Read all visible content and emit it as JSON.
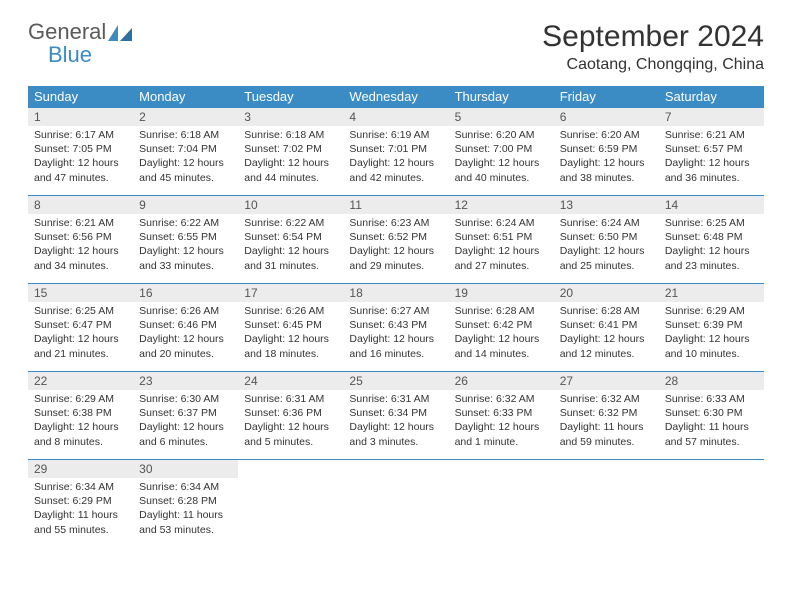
{
  "brand": {
    "general": "General",
    "blue": "Blue"
  },
  "title": "September 2024",
  "location": "Caotang, Chongqing, China",
  "colors": {
    "header_bg": "#3b8bc4",
    "header_text": "#ffffff",
    "daynum_bg": "#ececec",
    "border": "#3b8bc4",
    "logo_gray": "#5a5a5a",
    "logo_blue": "#3b8bc4"
  },
  "day_headers": [
    "Sunday",
    "Monday",
    "Tuesday",
    "Wednesday",
    "Thursday",
    "Friday",
    "Saturday"
  ],
  "days": [
    {
      "n": "1",
      "sr": "Sunrise: 6:17 AM",
      "ss": "Sunset: 7:05 PM",
      "d1": "Daylight: 12 hours",
      "d2": "and 47 minutes."
    },
    {
      "n": "2",
      "sr": "Sunrise: 6:18 AM",
      "ss": "Sunset: 7:04 PM",
      "d1": "Daylight: 12 hours",
      "d2": "and 45 minutes."
    },
    {
      "n": "3",
      "sr": "Sunrise: 6:18 AM",
      "ss": "Sunset: 7:02 PM",
      "d1": "Daylight: 12 hours",
      "d2": "and 44 minutes."
    },
    {
      "n": "4",
      "sr": "Sunrise: 6:19 AM",
      "ss": "Sunset: 7:01 PM",
      "d1": "Daylight: 12 hours",
      "d2": "and 42 minutes."
    },
    {
      "n": "5",
      "sr": "Sunrise: 6:20 AM",
      "ss": "Sunset: 7:00 PM",
      "d1": "Daylight: 12 hours",
      "d2": "and 40 minutes."
    },
    {
      "n": "6",
      "sr": "Sunrise: 6:20 AM",
      "ss": "Sunset: 6:59 PM",
      "d1": "Daylight: 12 hours",
      "d2": "and 38 minutes."
    },
    {
      "n": "7",
      "sr": "Sunrise: 6:21 AM",
      "ss": "Sunset: 6:57 PM",
      "d1": "Daylight: 12 hours",
      "d2": "and 36 minutes."
    },
    {
      "n": "8",
      "sr": "Sunrise: 6:21 AM",
      "ss": "Sunset: 6:56 PM",
      "d1": "Daylight: 12 hours",
      "d2": "and 34 minutes."
    },
    {
      "n": "9",
      "sr": "Sunrise: 6:22 AM",
      "ss": "Sunset: 6:55 PM",
      "d1": "Daylight: 12 hours",
      "d2": "and 33 minutes."
    },
    {
      "n": "10",
      "sr": "Sunrise: 6:22 AM",
      "ss": "Sunset: 6:54 PM",
      "d1": "Daylight: 12 hours",
      "d2": "and 31 minutes."
    },
    {
      "n": "11",
      "sr": "Sunrise: 6:23 AM",
      "ss": "Sunset: 6:52 PM",
      "d1": "Daylight: 12 hours",
      "d2": "and 29 minutes."
    },
    {
      "n": "12",
      "sr": "Sunrise: 6:24 AM",
      "ss": "Sunset: 6:51 PM",
      "d1": "Daylight: 12 hours",
      "d2": "and 27 minutes."
    },
    {
      "n": "13",
      "sr": "Sunrise: 6:24 AM",
      "ss": "Sunset: 6:50 PM",
      "d1": "Daylight: 12 hours",
      "d2": "and 25 minutes."
    },
    {
      "n": "14",
      "sr": "Sunrise: 6:25 AM",
      "ss": "Sunset: 6:48 PM",
      "d1": "Daylight: 12 hours",
      "d2": "and 23 minutes."
    },
    {
      "n": "15",
      "sr": "Sunrise: 6:25 AM",
      "ss": "Sunset: 6:47 PM",
      "d1": "Daylight: 12 hours",
      "d2": "and 21 minutes."
    },
    {
      "n": "16",
      "sr": "Sunrise: 6:26 AM",
      "ss": "Sunset: 6:46 PM",
      "d1": "Daylight: 12 hours",
      "d2": "and 20 minutes."
    },
    {
      "n": "17",
      "sr": "Sunrise: 6:26 AM",
      "ss": "Sunset: 6:45 PM",
      "d1": "Daylight: 12 hours",
      "d2": "and 18 minutes."
    },
    {
      "n": "18",
      "sr": "Sunrise: 6:27 AM",
      "ss": "Sunset: 6:43 PM",
      "d1": "Daylight: 12 hours",
      "d2": "and 16 minutes."
    },
    {
      "n": "19",
      "sr": "Sunrise: 6:28 AM",
      "ss": "Sunset: 6:42 PM",
      "d1": "Daylight: 12 hours",
      "d2": "and 14 minutes."
    },
    {
      "n": "20",
      "sr": "Sunrise: 6:28 AM",
      "ss": "Sunset: 6:41 PM",
      "d1": "Daylight: 12 hours",
      "d2": "and 12 minutes."
    },
    {
      "n": "21",
      "sr": "Sunrise: 6:29 AM",
      "ss": "Sunset: 6:39 PM",
      "d1": "Daylight: 12 hours",
      "d2": "and 10 minutes."
    },
    {
      "n": "22",
      "sr": "Sunrise: 6:29 AM",
      "ss": "Sunset: 6:38 PM",
      "d1": "Daylight: 12 hours",
      "d2": "and 8 minutes."
    },
    {
      "n": "23",
      "sr": "Sunrise: 6:30 AM",
      "ss": "Sunset: 6:37 PM",
      "d1": "Daylight: 12 hours",
      "d2": "and 6 minutes."
    },
    {
      "n": "24",
      "sr": "Sunrise: 6:31 AM",
      "ss": "Sunset: 6:36 PM",
      "d1": "Daylight: 12 hours",
      "d2": "and 5 minutes."
    },
    {
      "n": "25",
      "sr": "Sunrise: 6:31 AM",
      "ss": "Sunset: 6:34 PM",
      "d1": "Daylight: 12 hours",
      "d2": "and 3 minutes."
    },
    {
      "n": "26",
      "sr": "Sunrise: 6:32 AM",
      "ss": "Sunset: 6:33 PM",
      "d1": "Daylight: 12 hours",
      "d2": "and 1 minute."
    },
    {
      "n": "27",
      "sr": "Sunrise: 6:32 AM",
      "ss": "Sunset: 6:32 PM",
      "d1": "Daylight: 11 hours",
      "d2": "and 59 minutes."
    },
    {
      "n": "28",
      "sr": "Sunrise: 6:33 AM",
      "ss": "Sunset: 6:30 PM",
      "d1": "Daylight: 11 hours",
      "d2": "and 57 minutes."
    },
    {
      "n": "29",
      "sr": "Sunrise: 6:34 AM",
      "ss": "Sunset: 6:29 PM",
      "d1": "Daylight: 11 hours",
      "d2": "and 55 minutes."
    },
    {
      "n": "30",
      "sr": "Sunrise: 6:34 AM",
      "ss": "Sunset: 6:28 PM",
      "d1": "Daylight: 11 hours",
      "d2": "and 53 minutes."
    }
  ]
}
